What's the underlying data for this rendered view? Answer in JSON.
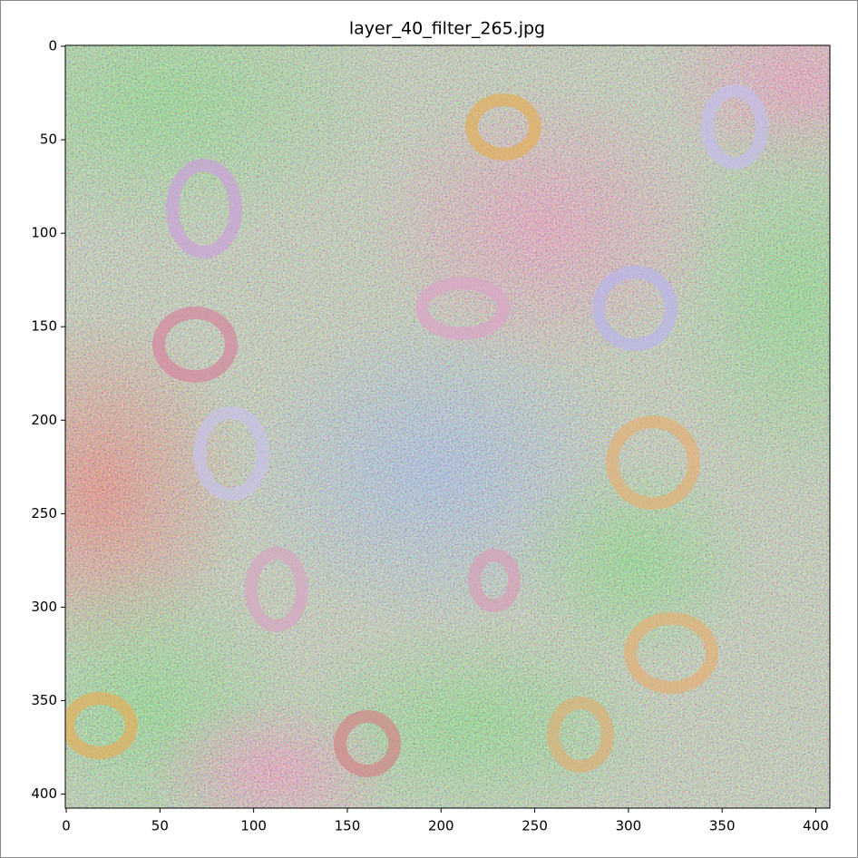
{
  "chart_data": {
    "type": "image",
    "title": "layer_40_filter_265.jpg",
    "xlim": [
      -0.5,
      407.5
    ],
    "ylim": [
      407.5,
      -0.5
    ],
    "xticks": [
      0,
      50,
      100,
      150,
      200,
      250,
      300,
      350,
      400
    ],
    "yticks": [
      0,
      50,
      100,
      150,
      200,
      250,
      300,
      350,
      400
    ]
  }
}
